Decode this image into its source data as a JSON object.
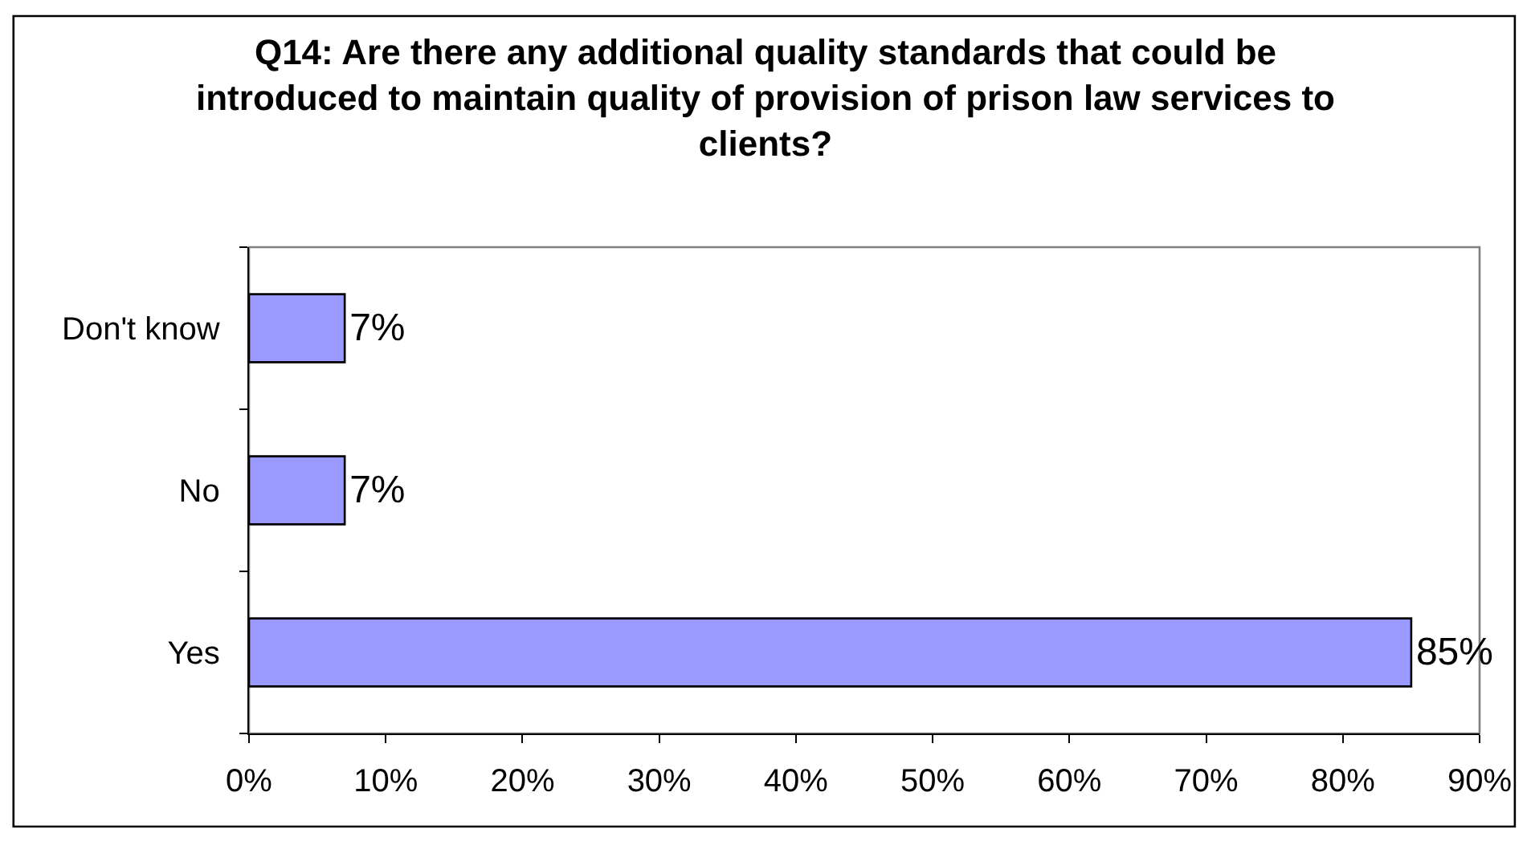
{
  "chart_data": {
    "type": "bar",
    "orientation": "horizontal",
    "title": "Q14: Are there any additional quality standards that could be\nintroduced to maintain quality of provision of prison law services to\nclients?",
    "categories": [
      "Don't know",
      "No",
      "Yes"
    ],
    "values": [
      7,
      7,
      85
    ],
    "value_labels": [
      "7%",
      "7%",
      "85%"
    ],
    "color": "#9999ff",
    "xlim": [
      0,
      90
    ],
    "xticks": [
      {
        "value": 0,
        "label": "0%"
      },
      {
        "value": 10,
        "label": "10%"
      },
      {
        "value": 20,
        "label": "20%"
      },
      {
        "value": 30,
        "label": "30%"
      },
      {
        "value": 40,
        "label": "40%"
      },
      {
        "value": 50,
        "label": "50%"
      },
      {
        "value": 60,
        "label": "60%"
      },
      {
        "value": 70,
        "label": "70%"
      },
      {
        "value": 80,
        "label": "80%"
      },
      {
        "value": 90,
        "label": "90%"
      }
    ],
    "grid": false
  }
}
